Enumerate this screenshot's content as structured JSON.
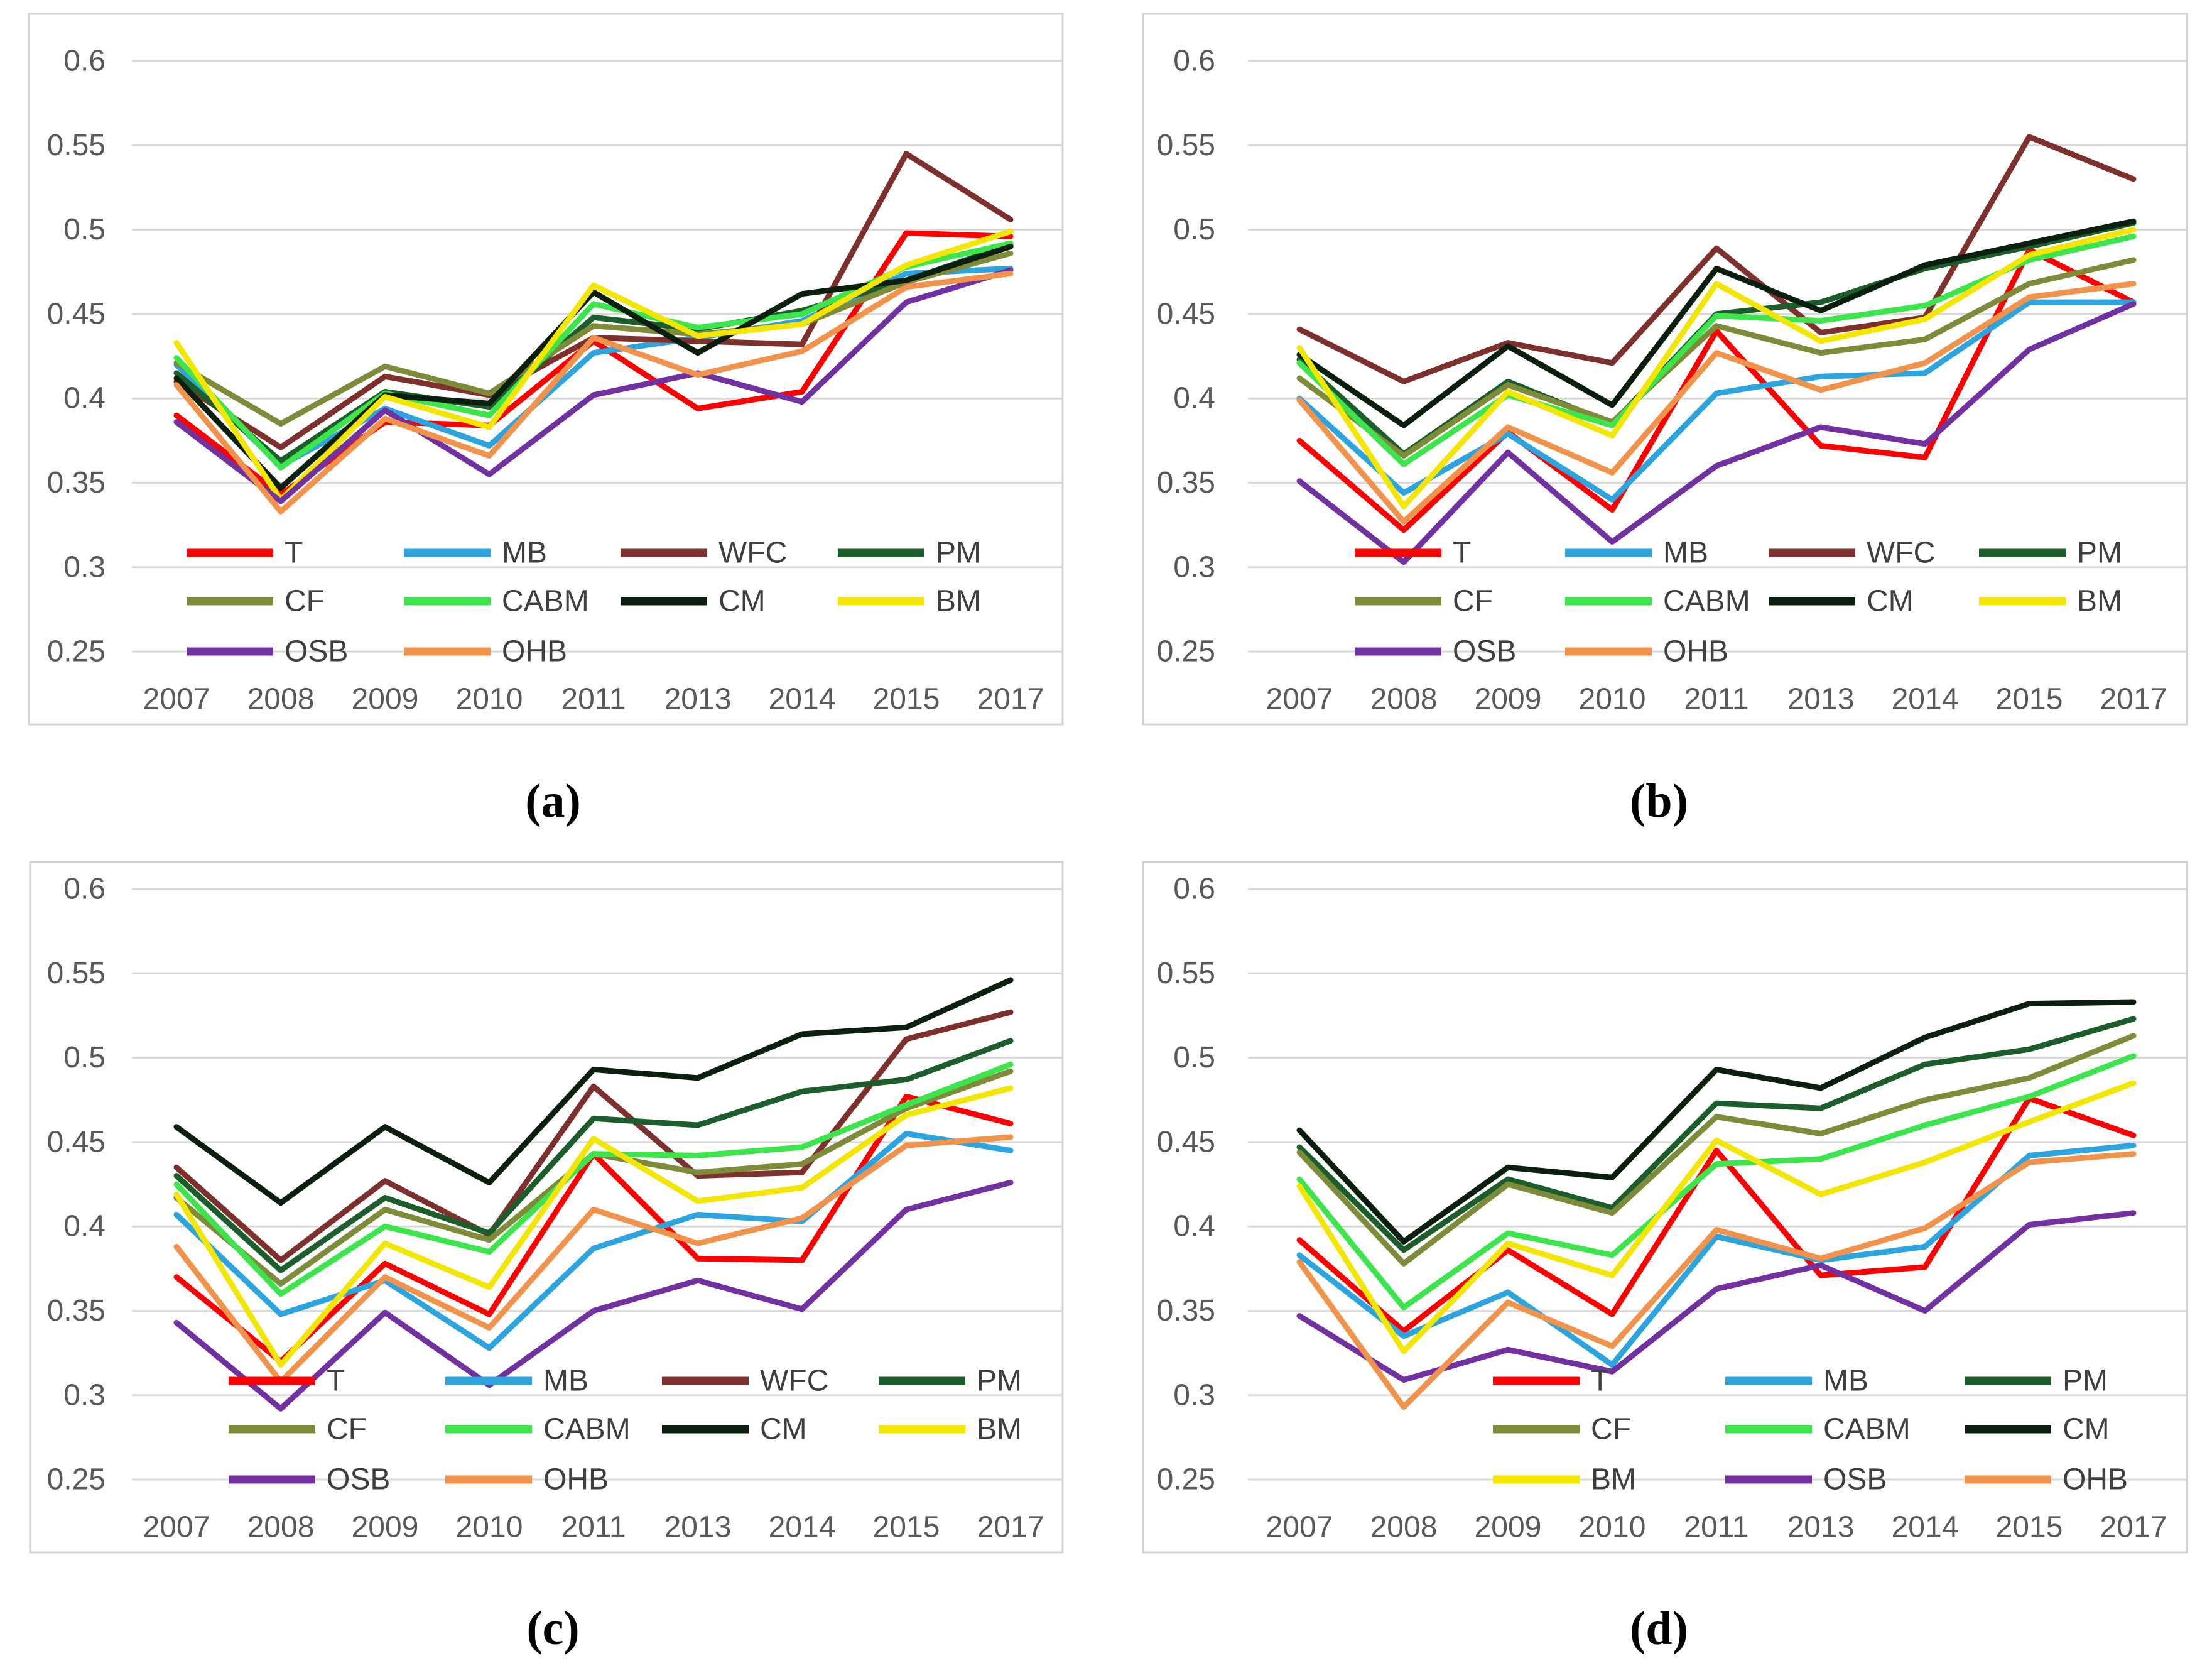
{
  "figure": {
    "description": "Four line charts (a)-(d) of index values 0.25-0.6 for ten series across years 2007-2017"
  },
  "axis": {
    "y_ticks": [
      "0.6",
      "0.55",
      "0.5",
      "0.45",
      "0.4",
      "0.35",
      "0.3",
      "0.25"
    ],
    "x_ticks": [
      "2007",
      "2008",
      "2009",
      "2010",
      "2011",
      "2013",
      "2014",
      "2015",
      "2017"
    ],
    "ylim": [
      0.25,
      0.6
    ],
    "grid": "horizontal",
    "tick_color": "#595959",
    "grid_color": "#D9D9D9",
    "border_color": "#D3D3D3"
  },
  "colors": {
    "T": "#FE0000",
    "MB": "#2BA4DF",
    "WFC": "#7E312C",
    "PM": "#1B5E2B",
    "CF": "#7E8C3A",
    "CABM": "#3CE54B",
    "CM": "#0B1F0F",
    "BM": "#F3E600",
    "OSB": "#7131A1",
    "OHB": "#F2934B"
  },
  "chart_data": [
    {
      "id": "a",
      "caption": "(a)",
      "type": "line",
      "x": [
        2007,
        2008,
        2009,
        2010,
        2011,
        2013,
        2014,
        2015,
        2017
      ],
      "legend_rows": [
        [
          "T",
          "MB",
          "WFC",
          "PM"
        ],
        [
          "CF",
          "CABM",
          "CM",
          "BM"
        ],
        [
          "OSB",
          "OHB"
        ]
      ],
      "legend_position": "inside-bottom",
      "series": [
        {
          "name": "T",
          "values": [
            0.39,
            0.343,
            0.386,
            0.384,
            0.434,
            0.394,
            0.404,
            0.498,
            0.496
          ]
        },
        {
          "name": "MB",
          "values": [
            0.42,
            0.36,
            0.394,
            0.372,
            0.427,
            0.436,
            0.446,
            0.474,
            0.477
          ]
        },
        {
          "name": "WFC",
          "values": [
            0.41,
            0.371,
            0.413,
            0.402,
            0.436,
            0.434,
            0.432,
            0.545,
            0.506
          ]
        },
        {
          "name": "PM",
          "values": [
            0.415,
            0.363,
            0.404,
            0.395,
            0.448,
            0.441,
            0.452,
            0.47,
            0.491
          ]
        },
        {
          "name": "CF",
          "values": [
            0.421,
            0.385,
            0.419,
            0.403,
            0.443,
            0.438,
            0.444,
            0.469,
            0.486
          ]
        },
        {
          "name": "CABM",
          "values": [
            0.424,
            0.359,
            0.403,
            0.39,
            0.456,
            0.442,
            0.45,
            0.478,
            0.492
          ]
        },
        {
          "name": "CM",
          "values": [
            0.412,
            0.347,
            0.402,
            0.397,
            0.463,
            0.427,
            0.462,
            0.47,
            0.49
          ]
        },
        {
          "name": "BM",
          "values": [
            0.433,
            0.34,
            0.401,
            0.383,
            0.467,
            0.437,
            0.444,
            0.479,
            0.499
          ]
        },
        {
          "name": "OSB",
          "values": [
            0.386,
            0.339,
            0.393,
            0.355,
            0.402,
            0.415,
            0.398,
            0.457,
            0.476
          ]
        },
        {
          "name": "OHB",
          "values": [
            0.408,
            0.333,
            0.388,
            0.366,
            0.436,
            0.414,
            0.428,
            0.466,
            0.474
          ]
        }
      ]
    },
    {
      "id": "b",
      "caption": "(b)",
      "type": "line",
      "x": [
        2007,
        2008,
        2009,
        2010,
        2011,
        2013,
        2014,
        2015,
        2017
      ],
      "legend_rows": [
        [
          "T",
          "MB",
          "WFC",
          "PM"
        ],
        [
          "CF",
          "CABM",
          "CM",
          "BM"
        ],
        [
          "OSB",
          "OHB"
        ]
      ],
      "legend_position": "inside-bottom",
      "series": [
        {
          "name": "T",
          "values": [
            0.375,
            0.322,
            0.38,
            0.334,
            0.44,
            0.372,
            0.365,
            0.488,
            0.457
          ]
        },
        {
          "name": "MB",
          "values": [
            0.4,
            0.344,
            0.379,
            0.34,
            0.403,
            0.413,
            0.415,
            0.457,
            0.457
          ]
        },
        {
          "name": "WFC",
          "values": [
            0.441,
            0.41,
            0.433,
            0.421,
            0.489,
            0.439,
            0.448,
            0.555,
            0.53
          ]
        },
        {
          "name": "PM",
          "values": [
            0.423,
            0.367,
            0.41,
            0.385,
            0.45,
            0.457,
            0.477,
            0.49,
            0.504
          ]
        },
        {
          "name": "CF",
          "values": [
            0.412,
            0.366,
            0.408,
            0.386,
            0.443,
            0.427,
            0.435,
            0.468,
            0.482
          ]
        },
        {
          "name": "CABM",
          "values": [
            0.421,
            0.361,
            0.402,
            0.384,
            0.449,
            0.446,
            0.455,
            0.482,
            0.496
          ]
        },
        {
          "name": "CM",
          "values": [
            0.426,
            0.384,
            0.431,
            0.396,
            0.477,
            0.452,
            0.479,
            0.492,
            0.505
          ]
        },
        {
          "name": "BM",
          "values": [
            0.43,
            0.336,
            0.404,
            0.378,
            0.468,
            0.434,
            0.447,
            0.485,
            0.5
          ]
        },
        {
          "name": "OSB",
          "values": [
            0.351,
            0.303,
            0.368,
            0.315,
            0.36,
            0.383,
            0.373,
            0.429,
            0.456
          ]
        },
        {
          "name": "OHB",
          "values": [
            0.399,
            0.327,
            0.383,
            0.356,
            0.427,
            0.405,
            0.421,
            0.46,
            0.468
          ]
        }
      ]
    },
    {
      "id": "c",
      "caption": "(c)",
      "type": "line",
      "x": [
        2007,
        2008,
        2009,
        2010,
        2011,
        2013,
        2014,
        2015,
        2017
      ],
      "legend_rows": [
        [
          "T",
          "MB",
          "WFC",
          "PM"
        ],
        [
          "CF",
          "CABM",
          "CM",
          "BM"
        ],
        [
          "OSB",
          "OHB"
        ]
      ],
      "legend_position": "inside-bottom",
      "series": [
        {
          "name": "T",
          "values": [
            0.37,
            0.32,
            0.378,
            0.348,
            0.443,
            0.381,
            0.38,
            0.477,
            0.461
          ]
        },
        {
          "name": "MB",
          "values": [
            0.407,
            0.348,
            0.368,
            0.328,
            0.387,
            0.407,
            0.403,
            0.455,
            0.445
          ]
        },
        {
          "name": "WFC",
          "values": [
            0.435,
            0.38,
            0.427,
            0.395,
            0.483,
            0.43,
            0.432,
            0.511,
            0.527
          ]
        },
        {
          "name": "PM",
          "values": [
            0.43,
            0.374,
            0.417,
            0.396,
            0.464,
            0.46,
            0.48,
            0.487,
            0.51
          ]
        },
        {
          "name": "CF",
          "values": [
            0.417,
            0.366,
            0.41,
            0.392,
            0.443,
            0.432,
            0.437,
            0.47,
            0.492
          ]
        },
        {
          "name": "CABM",
          "values": [
            0.425,
            0.36,
            0.4,
            0.385,
            0.443,
            0.442,
            0.447,
            0.472,
            0.496
          ]
        },
        {
          "name": "CM",
          "values": [
            0.459,
            0.414,
            0.459,
            0.426,
            0.493,
            0.488,
            0.514,
            0.518,
            0.546
          ]
        },
        {
          "name": "BM",
          "values": [
            0.419,
            0.318,
            0.39,
            0.364,
            0.452,
            0.415,
            0.423,
            0.466,
            0.482
          ]
        },
        {
          "name": "OSB",
          "values": [
            0.343,
            0.292,
            0.349,
            0.306,
            0.35,
            0.368,
            0.351,
            0.41,
            0.426
          ]
        },
        {
          "name": "OHB",
          "values": [
            0.388,
            0.308,
            0.37,
            0.34,
            0.41,
            0.39,
            0.405,
            0.448,
            0.453
          ]
        }
      ]
    },
    {
      "id": "d",
      "caption": "(d)",
      "type": "line",
      "x": [
        2007,
        2008,
        2009,
        2010,
        2011,
        2013,
        2014,
        2015,
        2017
      ],
      "legend_rows": [
        [
          "T",
          "MB",
          "PM"
        ],
        [
          "CF",
          "CABM",
          "CM"
        ],
        [
          "BM",
          "OSB",
          "OHB"
        ]
      ],
      "legend_position": "inside-bottom",
      "series": [
        {
          "name": "T",
          "values": [
            0.392,
            0.338,
            0.386,
            0.348,
            0.445,
            0.371,
            0.376,
            0.476,
            0.454
          ]
        },
        {
          "name": "MB",
          "values": [
            0.383,
            0.335,
            0.361,
            0.318,
            0.394,
            0.38,
            0.388,
            0.442,
            0.448
          ]
        },
        {
          "name": "PM",
          "values": [
            0.447,
            0.386,
            0.428,
            0.411,
            0.473,
            0.47,
            0.496,
            0.505,
            0.523
          ]
        },
        {
          "name": "CF",
          "values": [
            0.444,
            0.378,
            0.425,
            0.408,
            0.465,
            0.455,
            0.475,
            0.488,
            0.513
          ]
        },
        {
          "name": "CABM",
          "values": [
            0.428,
            0.352,
            0.396,
            0.383,
            0.437,
            0.44,
            0.46,
            0.477,
            0.501
          ]
        },
        {
          "name": "CM",
          "values": [
            0.457,
            0.391,
            0.435,
            0.429,
            0.493,
            0.482,
            0.512,
            0.532,
            0.533
          ]
        },
        {
          "name": "BM",
          "values": [
            0.424,
            0.326,
            0.39,
            0.371,
            0.451,
            0.419,
            0.438,
            0.462,
            0.485
          ]
        },
        {
          "name": "OSB",
          "values": [
            0.347,
            0.309,
            0.327,
            0.314,
            0.363,
            0.377,
            0.35,
            0.401,
            0.408
          ]
        },
        {
          "name": "OHB",
          "values": [
            0.379,
            0.293,
            0.355,
            0.329,
            0.398,
            0.381,
            0.399,
            0.438,
            0.443
          ]
        }
      ]
    }
  ]
}
